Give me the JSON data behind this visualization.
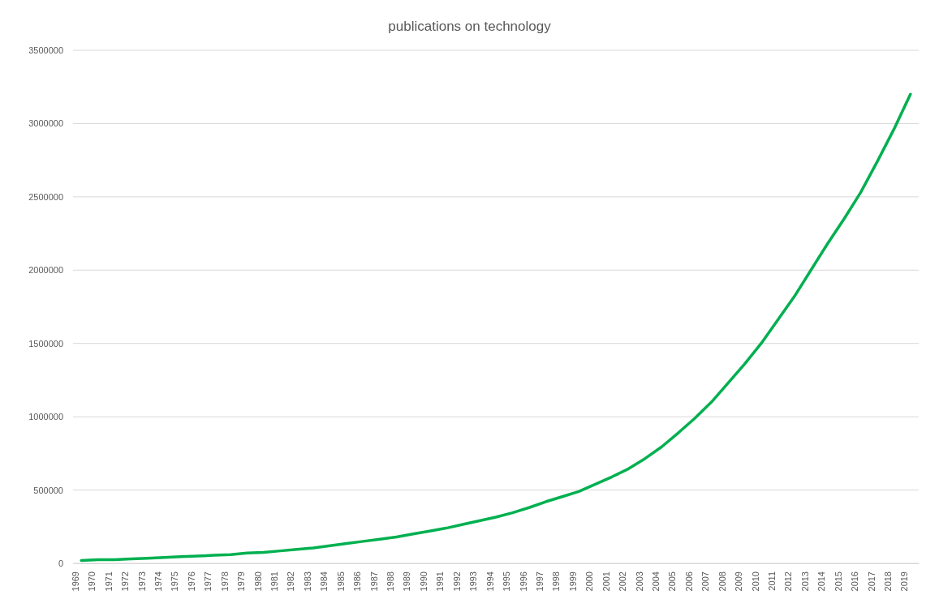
{
  "chart_data": {
    "type": "line",
    "title": "publications on technology",
    "categories": [
      "1969",
      "1970",
      "1971",
      "1972",
      "1973",
      "1974",
      "1975",
      "1976",
      "1977",
      "1978",
      "1979",
      "1980",
      "1981",
      "1982",
      "1983",
      "1984",
      "1985",
      "1986",
      "1987",
      "1988",
      "1989",
      "1990",
      "1991",
      "1992",
      "1993",
      "1994",
      "1995",
      "1996",
      "1997",
      "1998",
      "1999",
      "2000",
      "2001",
      "2002",
      "2003",
      "2004",
      "2005",
      "2006",
      "2007",
      "2008",
      "2009",
      "2010",
      "2011",
      "2012",
      "2013",
      "2014",
      "2015",
      "2016",
      "2017",
      "2018",
      "2019"
    ],
    "series": [
      {
        "color": "#00b050",
        "values": [
          20000,
          25000,
          25000,
          30000,
          35000,
          40000,
          45000,
          50000,
          55000,
          60000,
          70000,
          75000,
          85000,
          95000,
          105000,
          120000,
          135000,
          150000,
          165000,
          180000,
          200000,
          220000,
          240000,
          265000,
          290000,
          315000,
          345000,
          380000,
          420000,
          455000,
          490000,
          540000,
          590000,
          645000,
          715000,
          795000,
          890000,
          990000,
          1100000,
          1230000,
          1360000,
          1500000,
          1660000,
          1820000,
          2000000,
          2180000,
          2350000,
          2530000,
          2740000,
          2960000,
          3200000
        ]
      }
    ],
    "ylim": [
      0,
      3500000
    ],
    "yticks": [
      0,
      500000,
      1000000,
      1500000,
      2000000,
      2500000,
      3000000,
      3500000
    ],
    "grid": "y",
    "marker": "none",
    "line_style": "solid"
  }
}
